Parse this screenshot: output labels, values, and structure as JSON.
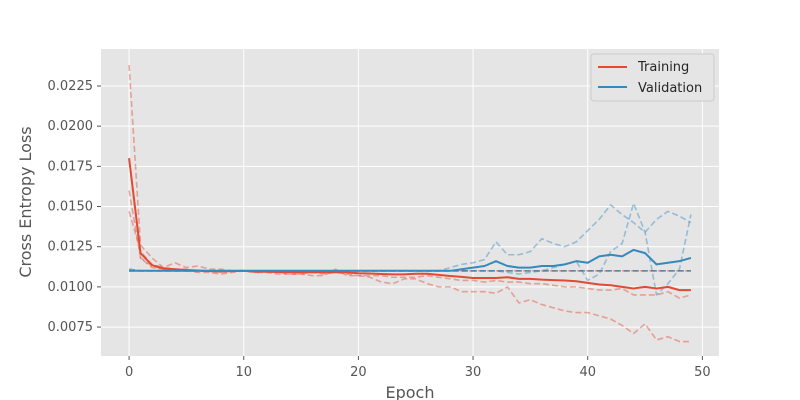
{
  "chart_data": {
    "type": "line",
    "title": "",
    "xlabel": "Epoch",
    "ylabel": "Cross Entropy Loss",
    "xlim": [
      -2.45,
      51.45
    ],
    "ylim": [
      0.0057,
      0.0248
    ],
    "xticks": [
      0,
      10,
      20,
      30,
      40,
      50
    ],
    "xtick_labels": [
      "0",
      "10",
      "20",
      "30",
      "40",
      "50"
    ],
    "yticks": [
      0.0075,
      0.01,
      0.0125,
      0.015,
      0.0175,
      0.02,
      0.0225
    ],
    "ytick_labels": [
      "0.0075",
      "0.0100",
      "0.0125",
      "0.0150",
      "0.0175",
      "0.0200",
      "0.0225"
    ],
    "grid": true,
    "legend_position": "top-right",
    "colors": {
      "training": "#e24a33",
      "validation": "#348abd",
      "background": "#e5e5e5",
      "grid": "#ffffff"
    },
    "series": [
      {
        "name": "Training",
        "role": "mean",
        "color": "#e24a33",
        "values": [
          0.018,
          0.0121,
          0.01135,
          0.01115,
          0.0111,
          0.01105,
          0.01102,
          0.01098,
          0.01095,
          0.01098,
          0.011,
          0.01095,
          0.01094,
          0.01093,
          0.01092,
          0.0109,
          0.01092,
          0.0109,
          0.01092,
          0.0109,
          0.01085,
          0.01083,
          0.0108,
          0.01078,
          0.01078,
          0.01082,
          0.01082,
          0.01075,
          0.01068,
          0.01062,
          0.01055,
          0.01055,
          0.01055,
          0.0106,
          0.0105,
          0.0105,
          0.01045,
          0.01042,
          0.0104,
          0.01035,
          0.01025,
          0.01015,
          0.0101,
          0.01,
          0.0099,
          0.01,
          0.0099,
          0.01,
          0.0098,
          0.0098
        ]
      },
      {
        "name": "",
        "role": "fold",
        "color": "#e24a33",
        "values": [
          0.0238,
          0.0126,
          0.0118,
          0.0112,
          0.0115,
          0.0112,
          0.0113,
          0.0111,
          0.0111,
          0.011,
          0.011,
          0.0109,
          0.011,
          0.0109,
          0.0108,
          0.0108,
          0.0107,
          0.0107,
          0.0111,
          0.0107,
          0.0107,
          0.0106,
          0.0103,
          0.0102,
          0.0105,
          0.0105,
          0.0102,
          0.01,
          0.01,
          0.0097,
          0.0097,
          0.0097,
          0.0096,
          0.01,
          0.009,
          0.0092,
          0.0089,
          0.0087,
          0.0085,
          0.0084,
          0.0084,
          0.0082,
          0.008,
          0.0076,
          0.0071,
          0.0077,
          0.0067,
          0.0069,
          0.0066,
          0.0066
        ]
      },
      {
        "name": "",
        "role": "fold",
        "color": "#e24a33",
        "values": [
          0.016,
          0.0118,
          0.0112,
          0.0111,
          0.011,
          0.011,
          0.0109,
          0.0109,
          0.0108,
          0.0109,
          0.011,
          0.0109,
          0.0109,
          0.0108,
          0.0108,
          0.0108,
          0.0109,
          0.0108,
          0.0109,
          0.0108,
          0.0107,
          0.0107,
          0.0107,
          0.0106,
          0.0106,
          0.0106,
          0.0107,
          0.0106,
          0.0105,
          0.0104,
          0.0104,
          0.0103,
          0.0104,
          0.0103,
          0.0103,
          0.0102,
          0.0102,
          0.0101,
          0.01,
          0.01,
          0.0099,
          0.0098,
          0.0098,
          0.0099,
          0.0095,
          0.0095,
          0.0095,
          0.0097,
          0.0093,
          0.0095
        ]
      },
      {
        "name": "",
        "role": "fold",
        "color": "#e24a33",
        "values": [
          0.0147,
          0.0122,
          0.0114,
          0.0112,
          0.0111,
          0.0111,
          0.011,
          0.011,
          0.011,
          0.011,
          0.011,
          0.011,
          0.011,
          0.011,
          0.011,
          0.011,
          0.011,
          0.011,
          0.011,
          0.011,
          0.011,
          0.011,
          0.011,
          0.011,
          0.011,
          0.011,
          0.011,
          0.011,
          0.011,
          0.011,
          0.011,
          0.011,
          0.011,
          0.011,
          0.011,
          0.011,
          0.011,
          0.011,
          0.011,
          0.011,
          0.011,
          0.011,
          0.011,
          0.011,
          0.011,
          0.011,
          0.011,
          0.011,
          0.011,
          0.011
        ]
      },
      {
        "name": "",
        "role": "fold",
        "color": "#e24a33",
        "values": [
          0.018,
          0.0118,
          0.0113,
          0.0111,
          0.0111,
          0.011,
          0.011,
          0.011,
          0.011,
          0.011,
          0.011,
          0.011,
          0.011,
          0.011,
          0.011,
          0.011,
          0.011,
          0.011,
          0.011,
          0.011,
          0.011,
          0.011,
          0.011,
          0.011,
          0.011,
          0.011,
          0.011,
          0.011,
          0.011,
          0.011,
          0.011,
          0.011,
          0.011,
          0.011,
          0.011,
          0.011,
          0.011,
          0.011,
          0.011,
          0.011,
          0.011,
          0.011,
          0.011,
          0.011,
          0.011,
          0.011,
          0.011,
          0.011,
          0.011,
          0.011
        ]
      },
      {
        "name": "Validation",
        "role": "mean",
        "color": "#348abd",
        "values": [
          0.011,
          0.011,
          0.011,
          0.011,
          0.011,
          0.011,
          0.011,
          0.011,
          0.011,
          0.011,
          0.011,
          0.011,
          0.011,
          0.011,
          0.011,
          0.011,
          0.011,
          0.011,
          0.011,
          0.011,
          0.011,
          0.011,
          0.011,
          0.011,
          0.011,
          0.011,
          0.011,
          0.011,
          0.011,
          0.0111,
          0.0112,
          0.0113,
          0.0116,
          0.0113,
          0.0112,
          0.0112,
          0.0113,
          0.0113,
          0.0114,
          0.0116,
          0.0115,
          0.0119,
          0.012,
          0.0119,
          0.0123,
          0.0121,
          0.0114,
          0.0115,
          0.0116,
          0.0118
        ]
      },
      {
        "name": "",
        "role": "fold",
        "color": "#348abd",
        "values": [
          0.011,
          0.011,
          0.011,
          0.011,
          0.011,
          0.011,
          0.011,
          0.011,
          0.011,
          0.011,
          0.011,
          0.011,
          0.011,
          0.011,
          0.011,
          0.011,
          0.011,
          0.011,
          0.011,
          0.011,
          0.011,
          0.011,
          0.011,
          0.011,
          0.011,
          0.011,
          0.011,
          0.011,
          0.0112,
          0.0114,
          0.0115,
          0.0117,
          0.0128,
          0.012,
          0.012,
          0.0122,
          0.013,
          0.0127,
          0.0125,
          0.0128,
          0.0135,
          0.0142,
          0.0151,
          0.0145,
          0.014,
          0.0134,
          0.0142,
          0.0147,
          0.0144,
          0.014
        ]
      },
      {
        "name": "",
        "role": "fold",
        "color": "#348abd",
        "values": [
          0.0111,
          0.011,
          0.011,
          0.011,
          0.011,
          0.011,
          0.011,
          0.011,
          0.011,
          0.011,
          0.011,
          0.011,
          0.011,
          0.011,
          0.011,
          0.011,
          0.011,
          0.011,
          0.011,
          0.011,
          0.011,
          0.011,
          0.011,
          0.011,
          0.011,
          0.011,
          0.011,
          0.011,
          0.011,
          0.011,
          0.011,
          0.011,
          0.011,
          0.0109,
          0.0108,
          0.0109,
          0.011,
          0.0112,
          0.0114,
          0.0116,
          0.0104,
          0.0108,
          0.0122,
          0.0127,
          0.0152,
          0.0134,
          0.0095,
          0.0102,
          0.0111,
          0.0145
        ]
      },
      {
        "name": "",
        "role": "fold",
        "color": "#348abd",
        "values": [
          0.0111,
          0.011,
          0.011,
          0.011,
          0.011,
          0.011,
          0.011,
          0.011,
          0.011,
          0.011,
          0.011,
          0.011,
          0.011,
          0.011,
          0.011,
          0.011,
          0.011,
          0.011,
          0.011,
          0.011,
          0.011,
          0.011,
          0.011,
          0.011,
          0.011,
          0.011,
          0.011,
          0.011,
          0.011,
          0.011,
          0.011,
          0.011,
          0.011,
          0.011,
          0.011,
          0.011,
          0.011,
          0.011,
          0.011,
          0.011,
          0.011,
          0.011,
          0.011,
          0.011,
          0.011,
          0.011,
          0.011,
          0.011,
          0.011,
          0.011
        ]
      },
      {
        "name": "",
        "role": "fold",
        "color": "#348abd",
        "values": [
          0.011,
          0.011,
          0.011,
          0.011,
          0.011,
          0.011,
          0.011,
          0.011,
          0.011,
          0.011,
          0.011,
          0.011,
          0.011,
          0.011,
          0.011,
          0.011,
          0.011,
          0.011,
          0.011,
          0.011,
          0.011,
          0.011,
          0.011,
          0.011,
          0.011,
          0.011,
          0.011,
          0.011,
          0.011,
          0.011,
          0.011,
          0.011,
          0.011,
          0.011,
          0.011,
          0.011,
          0.011,
          0.011,
          0.011,
          0.011,
          0.011,
          0.011,
          0.011,
          0.011,
          0.011,
          0.011,
          0.011,
          0.011,
          0.011,
          0.011
        ]
      }
    ]
  }
}
